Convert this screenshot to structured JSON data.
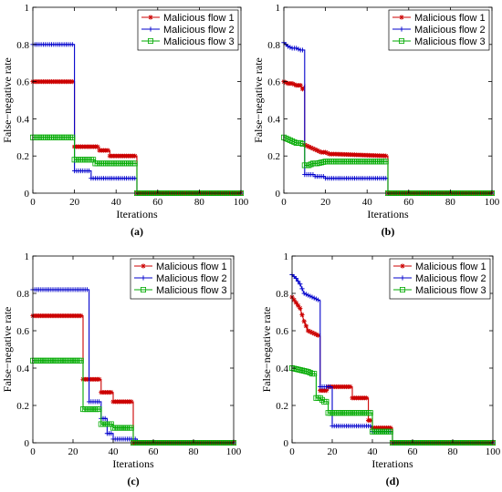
{
  "chart_data": [
    {
      "type": "line",
      "panel_label": "(a)",
      "xlabel": "Iterations",
      "ylabel": "False−negative rate",
      "xlim": [
        0,
        100
      ],
      "ylim": [
        0,
        1
      ],
      "xticks": [
        0,
        20,
        40,
        60,
        80,
        100
      ],
      "yticks": [
        0,
        0.2,
        0.4,
        0.6,
        0.8,
        1
      ],
      "ytick_labels": [
        "0",
        "0.2",
        "0.4",
        "0.6",
        "0.8",
        "1"
      ],
      "legend_position": "top-right",
      "grid": false,
      "series": [
        {
          "name": "Malicious flow 1",
          "color": "#cc0000",
          "marker": "asterisk",
          "x": [
            0,
            20,
            20,
            32,
            32,
            37,
            37,
            50,
            50,
            100
          ],
          "y": [
            0.6,
            0.6,
            0.25,
            0.25,
            0.23,
            0.23,
            0.2,
            0.2,
            0,
            0
          ]
        },
        {
          "name": "Malicious flow 2",
          "color": "#0000cc",
          "marker": "plus",
          "x": [
            0,
            20,
            20,
            28,
            28,
            50,
            50,
            100
          ],
          "y": [
            0.8,
            0.8,
            0.12,
            0.12,
            0.08,
            0.08,
            0,
            0
          ]
        },
        {
          "name": "Malicious flow 3",
          "color": "#00aa00",
          "marker": "square",
          "x": [
            0,
            20,
            20,
            30,
            30,
            50,
            50,
            100
          ],
          "y": [
            0.3,
            0.3,
            0.18,
            0.18,
            0.16,
            0.16,
            0,
            0
          ]
        }
      ]
    },
    {
      "type": "line",
      "panel_label": "(b)",
      "xlabel": "Iterations",
      "ylabel": "False−negative rate",
      "xlim": [
        0,
        100
      ],
      "ylim": [
        0,
        1
      ],
      "xticks": [
        0,
        20,
        40,
        60,
        80,
        100
      ],
      "yticks": [
        0,
        0.2,
        0.4,
        0.6,
        0.8,
        1
      ],
      "ytick_labels": [
        "0",
        "0.2",
        "0.4",
        "0.6",
        "0.8",
        "1"
      ],
      "legend_position": "top-right",
      "grid": false,
      "series": [
        {
          "name": "Malicious flow 1",
          "color": "#cc0000",
          "marker": "asterisk",
          "x": [
            0,
            2,
            4,
            6,
            8,
            9,
            10,
            10,
            12,
            14,
            16,
            18,
            20,
            22,
            25,
            50,
            50,
            100
          ],
          "y": [
            0.6,
            0.59,
            0.59,
            0.58,
            0.58,
            0.56,
            0.58,
            0.26,
            0.25,
            0.24,
            0.23,
            0.22,
            0.22,
            0.21,
            0.21,
            0.2,
            0,
            0
          ]
        },
        {
          "name": "Malicious flow 2",
          "color": "#0000cc",
          "marker": "plus",
          "x": [
            0,
            2,
            4,
            6,
            8,
            10,
            10,
            15,
            15,
            20,
            20,
            50,
            50,
            100
          ],
          "y": [
            0.81,
            0.79,
            0.78,
            0.78,
            0.77,
            0.77,
            0.1,
            0.1,
            0.09,
            0.09,
            0.08,
            0.08,
            0,
            0
          ]
        },
        {
          "name": "Malicious flow 3",
          "color": "#00aa00",
          "marker": "square",
          "x": [
            0,
            2,
            4,
            6,
            8,
            10,
            10,
            12,
            14,
            16,
            20,
            50,
            50,
            100
          ],
          "y": [
            0.3,
            0.29,
            0.28,
            0.27,
            0.27,
            0.26,
            0.15,
            0.15,
            0.16,
            0.16,
            0.17,
            0.17,
            0,
            0
          ]
        }
      ]
    },
    {
      "type": "line",
      "panel_label": "(c)",
      "xlabel": "Iterations",
      "ylabel": "False−negative rate",
      "xlim": [
        0,
        100
      ],
      "ylim": [
        0,
        1
      ],
      "xticks": [
        0,
        20,
        40,
        60,
        80,
        100
      ],
      "yticks": [
        0,
        0.2,
        0.4,
        0.6,
        0.8,
        1
      ],
      "ytick_labels": [
        "0",
        "0.2",
        "0.4",
        "0.6",
        "0.8",
        "1"
      ],
      "legend_position": "top-right",
      "grid": false,
      "series": [
        {
          "name": "Malicious flow 1",
          "color": "#cc0000",
          "marker": "asterisk",
          "x": [
            0,
            25,
            25,
            34,
            34,
            40,
            40,
            50,
            50,
            100
          ],
          "y": [
            0.68,
            0.68,
            0.34,
            0.34,
            0.27,
            0.27,
            0.22,
            0.22,
            0,
            0
          ]
        },
        {
          "name": "Malicious flow 2",
          "color": "#0000cc",
          "marker": "plus",
          "x": [
            0,
            28,
            28,
            34,
            34,
            37,
            37,
            40,
            40,
            52,
            52,
            100
          ],
          "y": [
            0.82,
            0.82,
            0.22,
            0.22,
            0.13,
            0.13,
            0.05,
            0.05,
            0.02,
            0.02,
            0,
            0
          ]
        },
        {
          "name": "Malicious flow 3",
          "color": "#00aa00",
          "marker": "square",
          "x": [
            0,
            25,
            25,
            34,
            34,
            40,
            40,
            50,
            50,
            100
          ],
          "y": [
            0.44,
            0.44,
            0.18,
            0.18,
            0.1,
            0.1,
            0.08,
            0.08,
            0,
            0
          ]
        }
      ]
    },
    {
      "type": "line",
      "panel_label": "(d)",
      "xlabel": "Iterations",
      "ylabel": "False−negative rate",
      "xlim": [
        0,
        100
      ],
      "ylim": [
        0,
        1
      ],
      "xticks": [
        0,
        20,
        40,
        60,
        80,
        100
      ],
      "yticks": [
        0,
        0.2,
        0.4,
        0.6,
        0.8,
        1
      ],
      "ytick_labels": [
        "0",
        "0.2",
        "0.4",
        "0.6",
        "0.8",
        "1"
      ],
      "legend_position": "top-right",
      "grid": false,
      "series": [
        {
          "name": "Malicious flow 1",
          "color": "#cc0000",
          "marker": "asterisk",
          "x": [
            0,
            2,
            4,
            6,
            8,
            10,
            12,
            14,
            14,
            18,
            18,
            30,
            30,
            38,
            38,
            40,
            40,
            50,
            50,
            100
          ],
          "y": [
            0.78,
            0.75,
            0.72,
            0.65,
            0.6,
            0.59,
            0.58,
            0.57,
            0.28,
            0.28,
            0.3,
            0.3,
            0.24,
            0.24,
            0.12,
            0.12,
            0.08,
            0.08,
            0,
            0
          ]
        },
        {
          "name": "Malicious flow 2",
          "color": "#0000cc",
          "marker": "plus",
          "x": [
            0,
            2,
            4,
            6,
            8,
            10,
            12,
            14,
            14,
            20,
            20,
            40,
            40,
            50,
            50,
            100
          ],
          "y": [
            0.9,
            0.88,
            0.85,
            0.8,
            0.79,
            0.78,
            0.77,
            0.76,
            0.3,
            0.3,
            0.09,
            0.09,
            0.06,
            0.06,
            0,
            0
          ]
        },
        {
          "name": "Malicious flow 3",
          "color": "#00aa00",
          "marker": "square",
          "x": [
            0,
            4,
            8,
            10,
            12,
            12,
            14,
            16,
            18,
            18,
            30,
            30,
            40,
            40,
            50,
            50,
            100
          ],
          "y": [
            0.4,
            0.39,
            0.38,
            0.37,
            0.37,
            0.24,
            0.24,
            0.22,
            0.22,
            0.16,
            0.16,
            0.16,
            0.16,
            0.06,
            0.06,
            0,
            0
          ]
        }
      ]
    }
  ]
}
